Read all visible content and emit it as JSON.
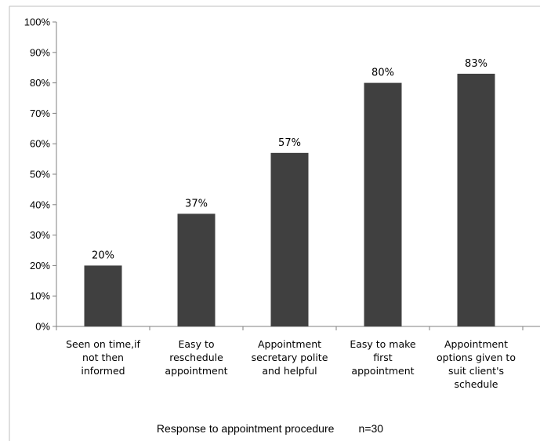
{
  "chart_data": {
    "type": "bar",
    "categories": [
      "Seen on time,if not then informed",
      "Easy to reschedule appointment",
      "Appointment secretary polite and helpful",
      "Easy to make first appointment",
      "Appointment options given to suit client's schedule"
    ],
    "category_lines": [
      [
        "Seen on time,if",
        "not then",
        "informed"
      ],
      [
        "Easy to",
        "reschedule",
        "appointment"
      ],
      [
        "Appointment",
        "secretary polite",
        "and helpful"
      ],
      [
        "Easy to make",
        "first",
        "appointment"
      ],
      [
        "Appointment",
        "options given to",
        "suit client's",
        "schedule"
      ]
    ],
    "values": [
      20,
      37,
      57,
      80,
      83
    ],
    "data_labels": [
      "20%",
      "37%",
      "57%",
      "80%",
      "83%"
    ],
    "y_ticks": [
      "0%",
      "10%",
      "20%",
      "30%",
      "40%",
      "50%",
      "60%",
      "70%",
      "80%",
      "90%",
      "100%"
    ],
    "ylim": [
      0,
      100
    ],
    "grid": false,
    "bar_color": "#404040",
    "xlabel": "Response to appointment procedure",
    "n_label": "n=30"
  }
}
